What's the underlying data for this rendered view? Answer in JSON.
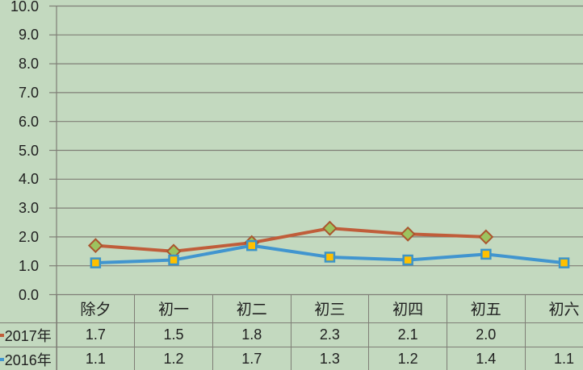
{
  "window": {
    "background_color": "#c3d9bf",
    "gridline_color": "#7f7e76",
    "text_color": "#1f1f1f"
  },
  "chart_data": {
    "type": "line",
    "categories": [
      "除夕",
      "初一",
      "初二",
      "初三",
      "初四",
      "初五",
      "初六"
    ],
    "series": [
      {
        "name": "2017年",
        "values": [
          1.7,
          1.5,
          1.8,
          2.3,
          2.1,
          2.0,
          null
        ],
        "line_color": "#c05d3a",
        "marker": "diamond",
        "marker_fill": "#9cc35f",
        "marker_border": "#aa552d"
      },
      {
        "name": "2016年",
        "values": [
          1.1,
          1.2,
          1.7,
          1.3,
          1.2,
          1.4,
          1.1
        ],
        "line_color": "#4195cf",
        "marker": "square",
        "marker_fill": "#ffc000",
        "marker_border": "#3c94c8"
      }
    ],
    "ylim": [
      0,
      10
    ],
    "ytick_labels": [
      "0.0",
      "1.0",
      "2.0",
      "3.0",
      "4.0",
      "5.0",
      "6.0",
      "7.0",
      "8.0",
      "9.0",
      "10.0"
    ],
    "grid": true,
    "data_table": true,
    "legend_position": "data-table-row-labels"
  }
}
